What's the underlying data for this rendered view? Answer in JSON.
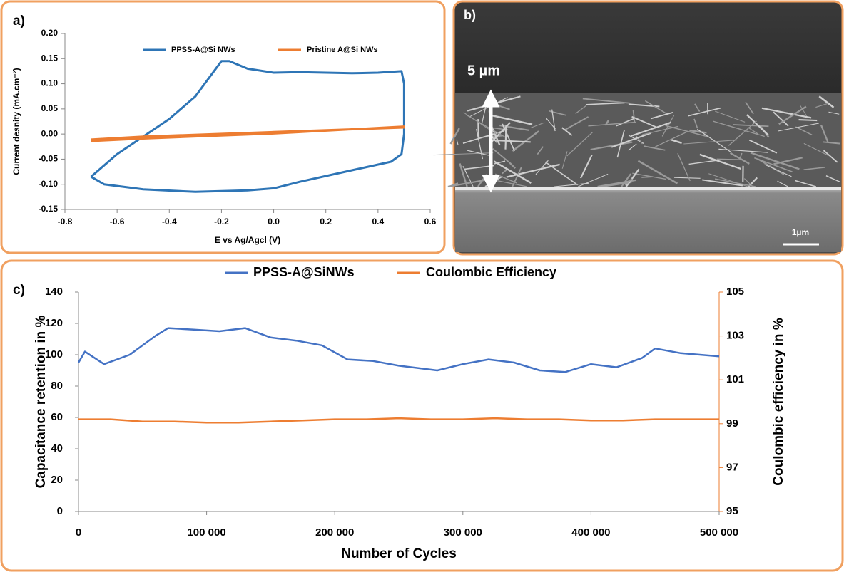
{
  "chart_data": [
    {
      "type": "line",
      "panel_label": "a)",
      "x_label": "E vs Ag/Agcl (V)",
      "y_label": "Current desnity  (mA.cm⁻²)",
      "xlim": [
        -0.8,
        0.6
      ],
      "xticks": [
        -0.8,
        -0.6,
        -0.4,
        -0.2,
        {
          "value": 0,
          "label": "0.0"
        },
        0.2,
        0.4,
        0.6
      ],
      "ylim": [
        -0.15,
        0.2
      ],
      "yticks": [
        -0.15,
        {
          "value": -0.1,
          "label": "-0.10"
        },
        -0.05,
        {
          "value": 0,
          "label": "0.00"
        },
        0.05,
        {
          "value": 0.1,
          "label": "0.10"
        },
        0.15,
        {
          "value": 0.2,
          "label": "0.20"
        }
      ],
      "series": [
        {
          "name": "PPSS-A@Si NWs",
          "color": "#2e75b6",
          "x": [
            -0.7,
            -0.6,
            -0.5,
            -0.4,
            -0.3,
            -0.25,
            -0.2,
            -0.17,
            -0.1,
            0,
            0.1,
            0.2,
            0.3,
            0.4,
            0.49,
            0.5,
            0.5,
            0.49,
            0.45,
            0.3,
            0.1,
            0,
            -0.1,
            -0.3,
            -0.5,
            -0.65,
            -0.7
          ],
          "values": [
            -0.085,
            -0.04,
            -0.005,
            0.03,
            0.075,
            0.11,
            0.145,
            0.145,
            0.13,
            0.122,
            0.123,
            0.122,
            0.121,
            0.122,
            0.125,
            0.1,
            0,
            -0.04,
            -0.055,
            -0.072,
            -0.095,
            -0.108,
            -0.112,
            -0.115,
            -0.11,
            -0.1,
            -0.085
          ]
        },
        {
          "name": "Pristine A@Si NWs",
          "color": "#ed7d31",
          "x": [
            -0.7,
            -0.5,
            0,
            0.5,
            0.5,
            0,
            -0.5,
            -0.7
          ],
          "values": [
            -0.014,
            -0.009,
            0.001,
            0.015,
            0.013,
            0.004,
            -0.005,
            -0.011
          ]
        }
      ]
    },
    {
      "type": "line",
      "panel_label": "c)",
      "x_label": "Number of Cycles",
      "y_label": "Capacitance retention in %",
      "y2_label": "Coulombic efficiency in %",
      "xlim": [
        0,
        500000
      ],
      "xticks": [
        0,
        {
          "value": 100000,
          "label": "100 000"
        },
        {
          "value": 200000,
          "label": "200 000"
        },
        {
          "value": 300000,
          "label": "300 000"
        },
        {
          "value": 400000,
          "label": "400 000"
        },
        {
          "value": 500000,
          "label": "500 000"
        }
      ],
      "ylim": [
        0,
        140
      ],
      "yticks": [
        0,
        20,
        40,
        60,
        80,
        100,
        120,
        140
      ],
      "y2lim": [
        95,
        105
      ],
      "y2ticks": [
        95,
        97,
        99,
        101,
        103,
        105
      ],
      "series": [
        {
          "name": "PPSS-A@SiNWs",
          "color": "#4472c4",
          "x": [
            0,
            5000,
            20000,
            40000,
            60000,
            70000,
            90000,
            110000,
            130000,
            150000,
            170000,
            190000,
            210000,
            230000,
            250000,
            280000,
            300000,
            320000,
            340000,
            360000,
            380000,
            400000,
            420000,
            440000,
            450000,
            470000,
            500000
          ],
          "values": [
            95,
            102,
            94,
            100,
            112,
            117,
            116,
            115,
            117,
            111,
            109,
            106,
            97,
            96,
            93,
            90,
            94,
            97,
            95,
            90,
            89,
            94,
            92,
            98,
            104,
            101,
            99
          ]
        },
        {
          "name": "Coulombic Efficiency",
          "color": "#ed7d31",
          "axis": "y2",
          "x": [
            0,
            25000,
            50000,
            75000,
            100000,
            125000,
            150000,
            175000,
            200000,
            225000,
            250000,
            275000,
            300000,
            325000,
            350000,
            375000,
            400000,
            425000,
            450000,
            475000,
            500000
          ],
          "values": [
            99.2,
            99.2,
            99.1,
            99.1,
            99.05,
            99.05,
            99.1,
            99.15,
            99.2,
            99.2,
            99.25,
            99.2,
            99.2,
            99.25,
            99.2,
            99.2,
            99.15,
            99.15,
            99.2,
            99.2,
            99.2
          ]
        }
      ]
    }
  ],
  "panel_b": {
    "label": "b)",
    "height_label": "5 µm",
    "scale_label": "1µm"
  }
}
